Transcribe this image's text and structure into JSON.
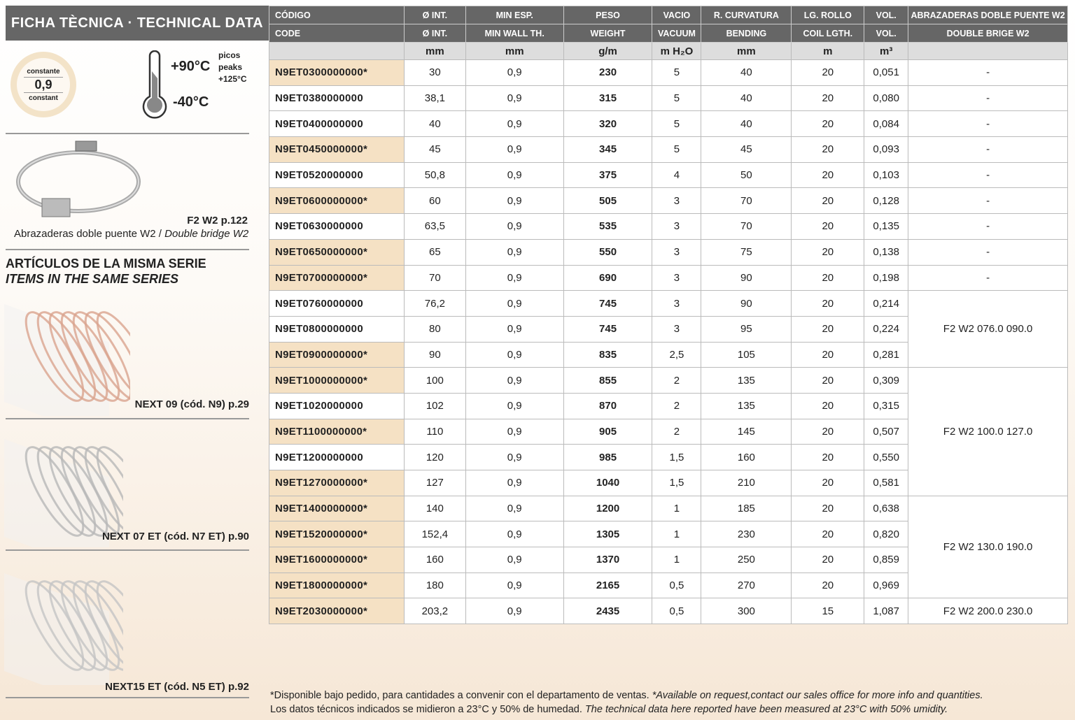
{
  "left": {
    "title": "FICHA TÈCNICA · TECHNICAL DATA",
    "badge": {
      "top": "constante",
      "value": "0,9",
      "bottom": "constant"
    },
    "temp": {
      "max": "+90°C",
      "min": "-40°C",
      "peaks_es": "picos",
      "peaks_en": "peaks",
      "peaks_val": "+125°C"
    },
    "clamp": {
      "ref": "F2 W2 p.122",
      "caption_es": "Abrazaderas doble puente W2 / ",
      "caption_en": "Double bridge W2"
    },
    "series_title_es": "ARTÍCULOS DE LA MISMA SERIE",
    "series_title_en": "ITEMS IN THE SAME SERIES",
    "items": [
      "NEXT 09 (cód. N9) p.29",
      "NEXT 07 ET (cód. N7 ET) p.90",
      "NEXT15 ET (cód. N5 ET) p.92"
    ]
  },
  "table": {
    "header_es": [
      "CÓDIGO",
      "Ø INT.",
      "MIN ESP.",
      "PESO",
      "VACIO",
      "R. CURVATURA",
      "LG. ROLLO",
      "VOL.",
      "ABRAZADERAS DOBLE PUENTE W2"
    ],
    "header_en": [
      "CODE",
      "Ø INT.",
      "MIN WALL TH.",
      "WEIGHT",
      "VACUUM",
      "BENDING",
      "COIL LGTH.",
      "VOL.",
      "DOUBLE BRIGE W2"
    ],
    "units": [
      "",
      "mm",
      "mm",
      "g/m",
      "m H₂O",
      "mm",
      "m",
      "m³",
      ""
    ],
    "rows": [
      [
        "N9ET0300000000*",
        "30",
        "0,9",
        "230",
        "5",
        "40",
        "20",
        "0,051"
      ],
      [
        "N9ET0380000000",
        "38,1",
        "0,9",
        "315",
        "5",
        "40",
        "20",
        "0,080"
      ],
      [
        "N9ET0400000000",
        "40",
        "0,9",
        "320",
        "5",
        "40",
        "20",
        "0,084"
      ],
      [
        "N9ET0450000000*",
        "45",
        "0,9",
        "345",
        "5",
        "45",
        "20",
        "0,093"
      ],
      [
        "N9ET0520000000",
        "50,8",
        "0,9",
        "375",
        "4",
        "50",
        "20",
        "0,103"
      ],
      [
        "N9ET0600000000*",
        "60",
        "0,9",
        "505",
        "3",
        "70",
        "20",
        "0,128"
      ],
      [
        "N9ET0630000000",
        "63,5",
        "0,9",
        "535",
        "3",
        "70",
        "20",
        "0,135"
      ],
      [
        "N9ET0650000000*",
        "65",
        "0,9",
        "550",
        "3",
        "75",
        "20",
        "0,138"
      ],
      [
        "N9ET0700000000*",
        "70",
        "0,9",
        "690",
        "3",
        "90",
        "20",
        "0,198"
      ],
      [
        "N9ET0760000000",
        "76,2",
        "0,9",
        "745",
        "3",
        "90",
        "20",
        "0,214"
      ],
      [
        "N9ET0800000000",
        "80",
        "0,9",
        "745",
        "3",
        "95",
        "20",
        "0,224"
      ],
      [
        "N9ET0900000000*",
        "90",
        "0,9",
        "835",
        "2,5",
        "105",
        "20",
        "0,281"
      ],
      [
        "N9ET1000000000*",
        "100",
        "0,9",
        "855",
        "2",
        "135",
        "20",
        "0,309"
      ],
      [
        "N9ET1020000000",
        "102",
        "0,9",
        "870",
        "2",
        "135",
        "20",
        "0,315"
      ],
      [
        "N9ET1100000000*",
        "110",
        "0,9",
        "905",
        "2",
        "145",
        "20",
        "0,507"
      ],
      [
        "N9ET1200000000",
        "120",
        "0,9",
        "985",
        "1,5",
        "160",
        "20",
        "0,550"
      ],
      [
        "N9ET1270000000*",
        "127",
        "0,9",
        "1040",
        "1,5",
        "210",
        "20",
        "0,581"
      ],
      [
        "N9ET1400000000*",
        "140",
        "0,9",
        "1200",
        "1",
        "185",
        "20",
        "0,638"
      ],
      [
        "N9ET1520000000*",
        "152,4",
        "0,9",
        "1305",
        "1",
        "230",
        "20",
        "0,820"
      ],
      [
        "N9ET1600000000*",
        "160",
        "0,9",
        "1370",
        "1",
        "250",
        "20",
        "0,859"
      ],
      [
        "N9ET1800000000*",
        "180",
        "0,9",
        "2165",
        "0,5",
        "270",
        "20",
        "0,969"
      ],
      [
        "N9ET2030000000*",
        "203,2",
        "0,9",
        "2435",
        "0,5",
        "300",
        "15",
        "1,087"
      ]
    ],
    "clamps": [
      {
        "start": 0,
        "span": 1,
        "text": "-"
      },
      {
        "start": 1,
        "span": 1,
        "text": "-"
      },
      {
        "start": 2,
        "span": 1,
        "text": "-"
      },
      {
        "start": 3,
        "span": 1,
        "text": "-"
      },
      {
        "start": 4,
        "span": 1,
        "text": "-"
      },
      {
        "start": 5,
        "span": 1,
        "text": "-"
      },
      {
        "start": 6,
        "span": 1,
        "text": "-"
      },
      {
        "start": 7,
        "span": 1,
        "text": "-"
      },
      {
        "start": 8,
        "span": 1,
        "text": "-"
      },
      {
        "start": 9,
        "span": 3,
        "text": "F2 W2 076.0 090.0"
      },
      {
        "start": 12,
        "span": 5,
        "text": "F2 W2 100.0 127.0"
      },
      {
        "start": 17,
        "span": 4,
        "text": "F2 W2 130.0 190.0"
      },
      {
        "start": 21,
        "span": 1,
        "text": "F2 W2 200.0 230.0"
      }
    ],
    "highlight_color": "#f5e1c4"
  },
  "footer": {
    "line1_es": "*Disponible bajo pedido, para cantidades a convenir con el departamento de ventas. ",
    "line1_en": "*Available on request,contact our sales office for more info and quantities.",
    "line2_es": "Los datos técnicos indicados se midieron a 23°C y 50% de humedad. ",
    "line2_en": "The technical data here reported have been measured at 23°C with 50% umidity."
  }
}
